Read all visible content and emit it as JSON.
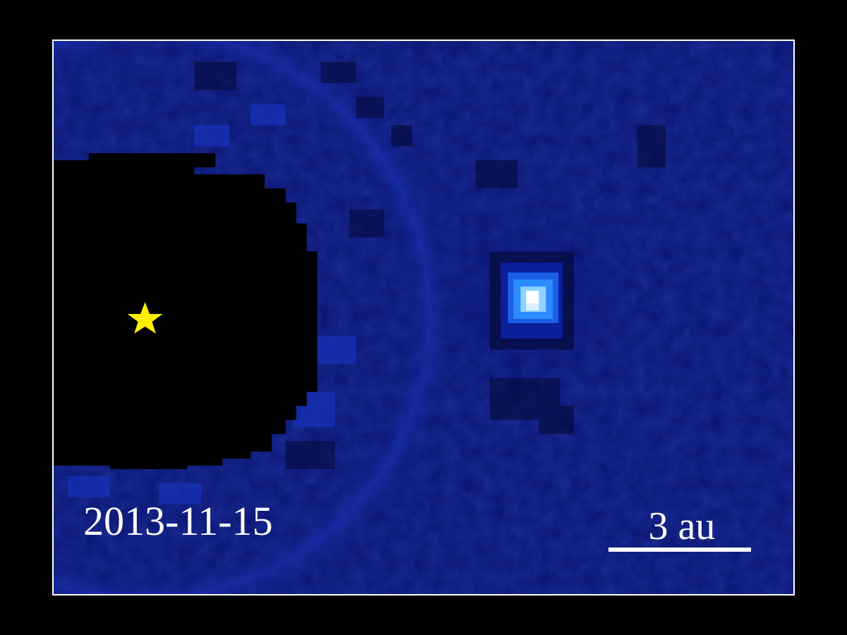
{
  "image": {
    "date": "2013-11-15",
    "scale_bar_label": "3 au",
    "star_marker": "star-icon",
    "colors": {
      "background": "#000000",
      "frame_border": "#ffffff",
      "field": "#0a1470",
      "mask": "#000000",
      "star": "#ffee00",
      "planet_core": "#ffffff",
      "planet_halo": "#1f7bff",
      "text": "#ffffff"
    }
  }
}
